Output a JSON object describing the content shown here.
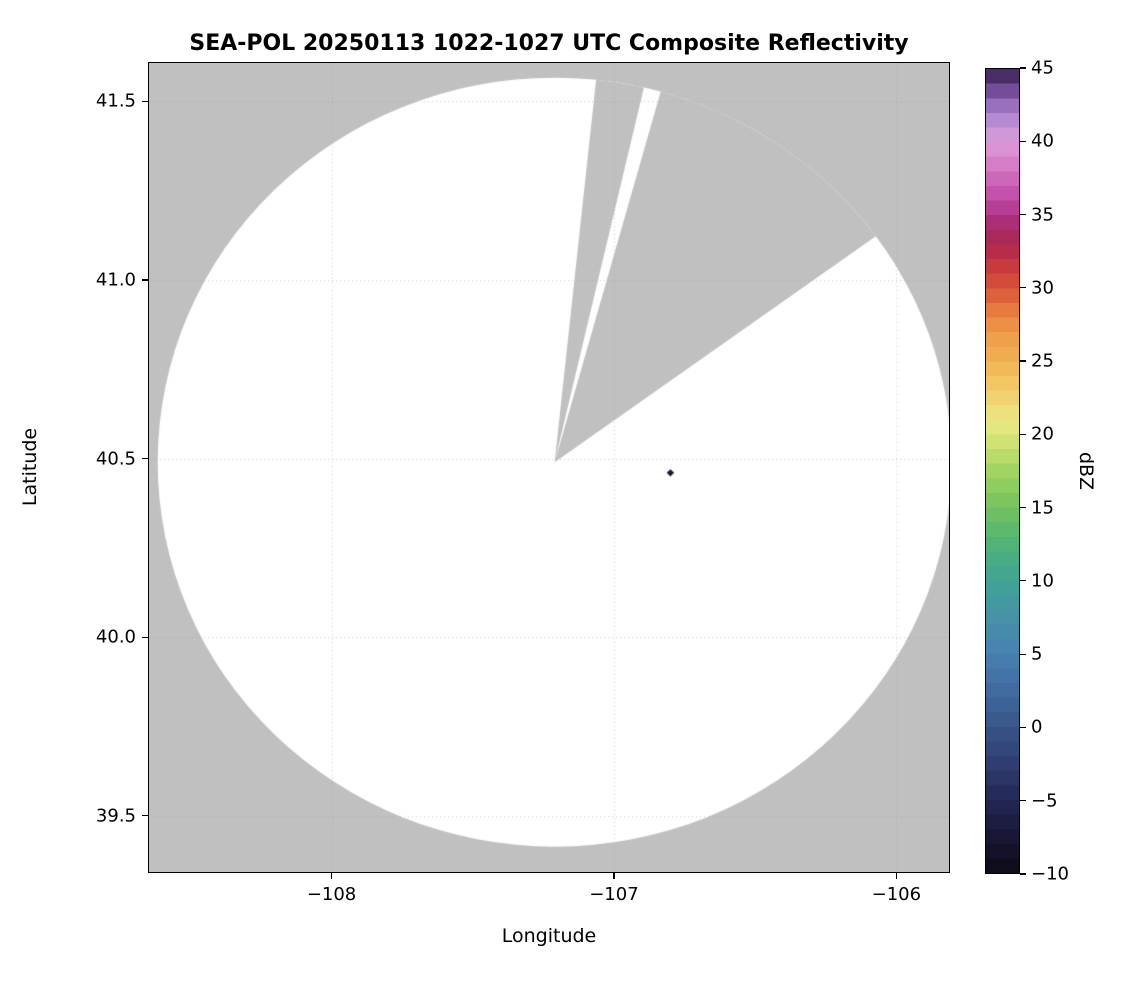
{
  "title": "SEA-POL 20250113 1022-1027 UTC Composite Reflectivity",
  "axes": {
    "xlabel": "Longitude",
    "ylabel": "Latitude",
    "xlim": [
      -108.65,
      -105.81
    ],
    "ylim": [
      39.34,
      41.61
    ],
    "xticks": [
      {
        "value": -108,
        "label": "−108"
      },
      {
        "value": -107,
        "label": "−107"
      },
      {
        "value": -106,
        "label": "−106"
      }
    ],
    "yticks": [
      {
        "value": 41.5,
        "label": "41.5"
      },
      {
        "value": 41.0,
        "label": "41.0"
      },
      {
        "value": 40.5,
        "label": "40.5"
      },
      {
        "value": 40.0,
        "label": "40.0"
      },
      {
        "value": 39.5,
        "label": "39.5"
      }
    ]
  },
  "colorbar": {
    "label": "dBZ",
    "vmin": -10,
    "vmax": 45,
    "ticks": [
      {
        "value": 45,
        "label": "45"
      },
      {
        "value": 40,
        "label": "40"
      },
      {
        "value": 35,
        "label": "35"
      },
      {
        "value": 30,
        "label": "30"
      },
      {
        "value": 25,
        "label": "25"
      },
      {
        "value": 20,
        "label": "20"
      },
      {
        "value": 15,
        "label": "15"
      },
      {
        "value": 10,
        "label": "10"
      },
      {
        "value": 5,
        "label": "5"
      },
      {
        "value": 0,
        "label": "0"
      },
      {
        "value": -5,
        "label": "−5"
      },
      {
        "value": -10,
        "label": "−10"
      }
    ],
    "stops": [
      {
        "v": -10,
        "c": "#0c0a11"
      },
      {
        "v": -8,
        "c": "#161530"
      },
      {
        "v": -6,
        "c": "#1f2048"
      },
      {
        "v": -4,
        "c": "#283060"
      },
      {
        "v": -2,
        "c": "#304278"
      },
      {
        "v": 0,
        "c": "#385488"
      },
      {
        "v": 2,
        "c": "#3f669c"
      },
      {
        "v": 4,
        "c": "#4677ab"
      },
      {
        "v": 5,
        "c": "#4880b0"
      },
      {
        "v": 7,
        "c": "#478fab"
      },
      {
        "v": 9,
        "c": "#429c9c"
      },
      {
        "v": 10,
        "c": "#40a392"
      },
      {
        "v": 12,
        "c": "#4bb07c"
      },
      {
        "v": 14,
        "c": "#63bd67"
      },
      {
        "v": 15,
        "c": "#74c35f"
      },
      {
        "v": 17,
        "c": "#97d05f"
      },
      {
        "v": 19,
        "c": "#c4de6e"
      },
      {
        "v": 20,
        "c": "#dde57a"
      },
      {
        "v": 21,
        "c": "#ebe884"
      },
      {
        "v": 22,
        "c": "#efda76"
      },
      {
        "v": 24,
        "c": "#f1bf5d"
      },
      {
        "v": 25,
        "c": "#f1b253"
      },
      {
        "v": 27,
        "c": "#ee9a48"
      },
      {
        "v": 28,
        "c": "#ea8641"
      },
      {
        "v": 30,
        "c": "#d9563a"
      },
      {
        "v": 31,
        "c": "#cf4238"
      },
      {
        "v": 32,
        "c": "#c13141"
      },
      {
        "v": 33,
        "c": "#ad2850"
      },
      {
        "v": 34,
        "c": "#a52a66"
      },
      {
        "v": 35,
        "c": "#af3387"
      },
      {
        "v": 36,
        "c": "#bc48a3"
      },
      {
        "v": 38,
        "c": "#d271c1"
      },
      {
        "v": 39,
        "c": "#da88cd"
      },
      {
        "v": 40,
        "c": "#d99bd9"
      },
      {
        "v": 41,
        "c": "#c495d6"
      },
      {
        "v": 42,
        "c": "#a87fc9"
      },
      {
        "v": 43,
        "c": "#8a60b1"
      },
      {
        "v": 44,
        "c": "#5e3a80"
      },
      {
        "v": 45,
        "c": "#34204b"
      }
    ]
  },
  "chart_data": {
    "type": "heatmap",
    "title": "SEA-POL 20250113 1022-1027 UTC Composite Reflectivity",
    "xlabel": "Longitude",
    "ylabel": "Latitude",
    "xlim": [
      -108.65,
      -105.81
    ],
    "ylim": [
      39.34,
      41.61
    ],
    "colorbar_label": "dBZ",
    "value_range_dbz": [
      -10,
      45
    ],
    "grid": "dotted",
    "legend": "colorbar-right",
    "description": "Radar composite reflectivity map from the SEA-POL radar. Circular scan coverage of ~120 km radius centered near (-107.21, 40.49) is rendered white (no echoes above display threshold) over a gray no-data background. A wedge-shaped sector toward the north-northeast (azimuth ~6° to ~54°) contains no data except a thin sampled sliver near azimuth ~14°. A single small strong echo (~45 dBZ, near-black/dark-purple pixel) appears east of the radar.",
    "radar": {
      "center_lon": -107.21,
      "center_lat": 40.49,
      "radius_km": 119
    },
    "coverage": {
      "missing_sector_az": [
        6,
        54
      ],
      "data_sliver_az": [
        13,
        15.5
      ]
    },
    "colors": {
      "no_data_background": "#c0c0c0",
      "coverage_fill": "#ffffff",
      "figure_background": "#ffffff"
    },
    "points": [
      {
        "lon": -106.8,
        "lat": 40.46,
        "dbz": 45,
        "color": "#241530"
      }
    ]
  }
}
